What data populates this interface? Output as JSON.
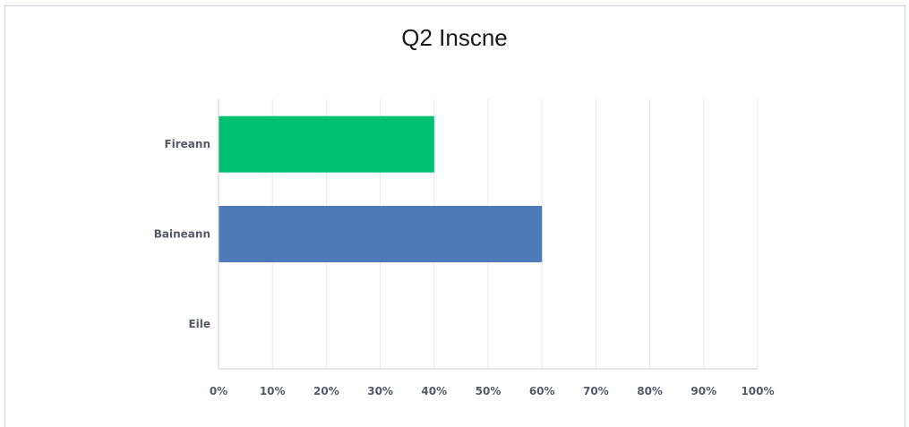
{
  "chart_data": {
    "type": "bar",
    "orientation": "horizontal",
    "title": "Q2 Inscne",
    "categories": [
      "Fireann",
      "Baineann",
      "Eile"
    ],
    "values": [
      40,
      60,
      0
    ],
    "colors": [
      "#00c173",
      "#4f7ab8",
      "#00c173"
    ],
    "xlim": [
      0,
      100
    ],
    "x_ticks": [
      "0%",
      "10%",
      "20%",
      "30%",
      "40%",
      "50%",
      "60%",
      "70%",
      "80%",
      "90%",
      "100%"
    ],
    "grid": true,
    "legend": false
  }
}
